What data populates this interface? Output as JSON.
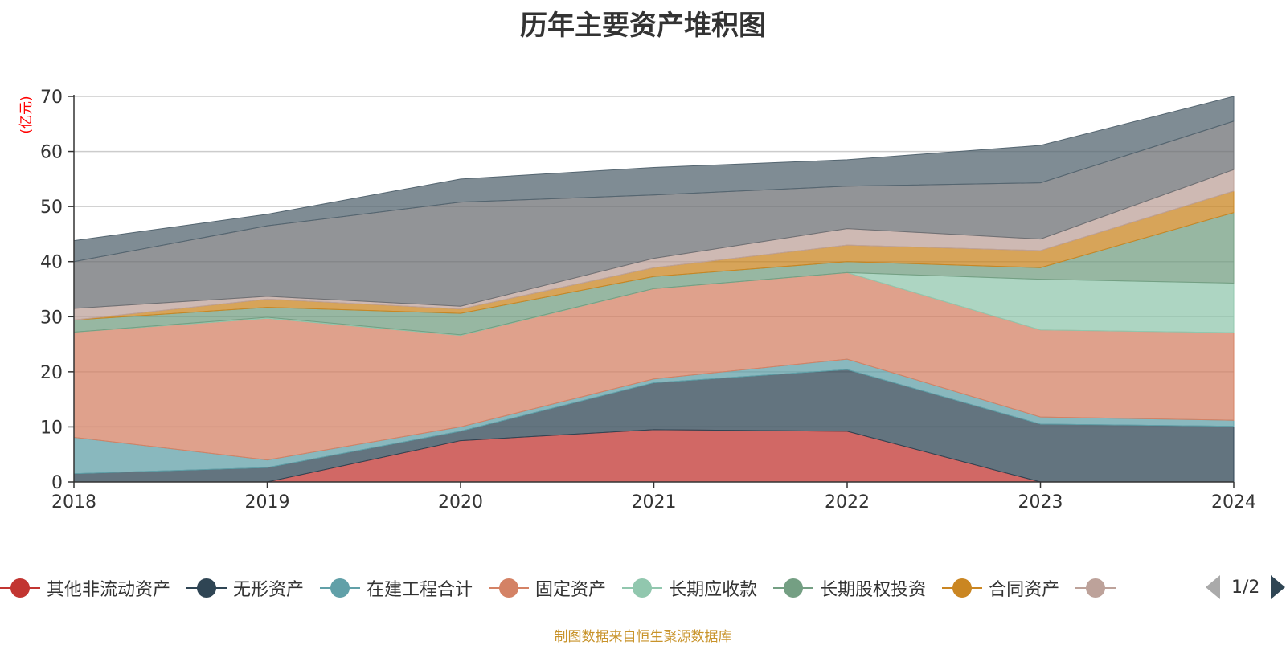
{
  "chart_data": {
    "type": "area",
    "stacked": true,
    "title": "历年主要资产堆积图",
    "yunit": "(亿元)",
    "x": [
      "2018",
      "2019",
      "2020",
      "2021",
      "2022",
      "2023",
      "2024"
    ],
    "ylim": [
      0,
      70
    ],
    "yticks": [
      0,
      10,
      20,
      30,
      40,
      50,
      60,
      70
    ],
    "grid": true,
    "legend_position": "bottom",
    "series": [
      {
        "name": "其他非流动资产",
        "color": "#c23531",
        "values": [
          0,
          0,
          7.5,
          9.5,
          9.2,
          0,
          0
        ]
      },
      {
        "name": "无形资产",
        "color": "#2f4554",
        "values": [
          1.5,
          2.6,
          1.7,
          8.5,
          11.2,
          10.5,
          10.1
        ]
      },
      {
        "name": "在建工程合计",
        "color": "#61a0a8",
        "values": [
          6.6,
          1.4,
          0.8,
          0.7,
          1.9,
          1.3,
          1.1
        ]
      },
      {
        "name": "固定资产",
        "color": "#d48265",
        "values": [
          19.1,
          25.7,
          16.6,
          16.4,
          15.7,
          15.8,
          15.9
        ]
      },
      {
        "name": "长期应收款",
        "color": "#91c7ae",
        "values": [
          0,
          0.2,
          0.1,
          0,
          0,
          9.2,
          9
        ]
      },
      {
        "name": "长期股权投资",
        "color": "#749f83",
        "values": [
          2.2,
          1.8,
          3.9,
          2.2,
          2,
          2.1,
          12.8
        ]
      },
      {
        "name": "合同资产",
        "color": "#ca8622",
        "values": [
          0,
          1.5,
          0.8,
          1.6,
          3,
          3.1,
          3.9
        ]
      },
      {
        "name": "",
        "color": "#bda29a",
        "values": [
          2.1,
          0.5,
          0.5,
          1.7,
          3,
          2.1,
          3.9
        ]
      },
      {
        "name": "",
        "color": "#6e7074",
        "values": [
          8.5,
          12.8,
          18.9,
          11.5,
          7.7,
          10.2,
          8.8
        ]
      },
      {
        "name": "",
        "color": "#546570",
        "values": [
          3.8,
          2.1,
          4.2,
          5,
          4.8,
          6.8,
          4.5
        ]
      }
    ]
  },
  "legend": {
    "items": [
      {
        "label": "其他非流动资产",
        "color": "#c23531"
      },
      {
        "label": "无形资产",
        "color": "#2f4554"
      },
      {
        "label": "在建工程合计",
        "color": "#61a0a8"
      },
      {
        "label": "固定资产",
        "color": "#d48265"
      },
      {
        "label": "长期应收款",
        "color": "#91c7ae"
      },
      {
        "label": "长期股权投资",
        "color": "#749f83"
      },
      {
        "label": "合同资产",
        "color": "#ca8622"
      },
      {
        "label": "",
        "color": "#bda29a"
      }
    ],
    "page_indicator": "1/2"
  },
  "footer": {
    "source": "制图数据来自恒生聚源数据库"
  }
}
